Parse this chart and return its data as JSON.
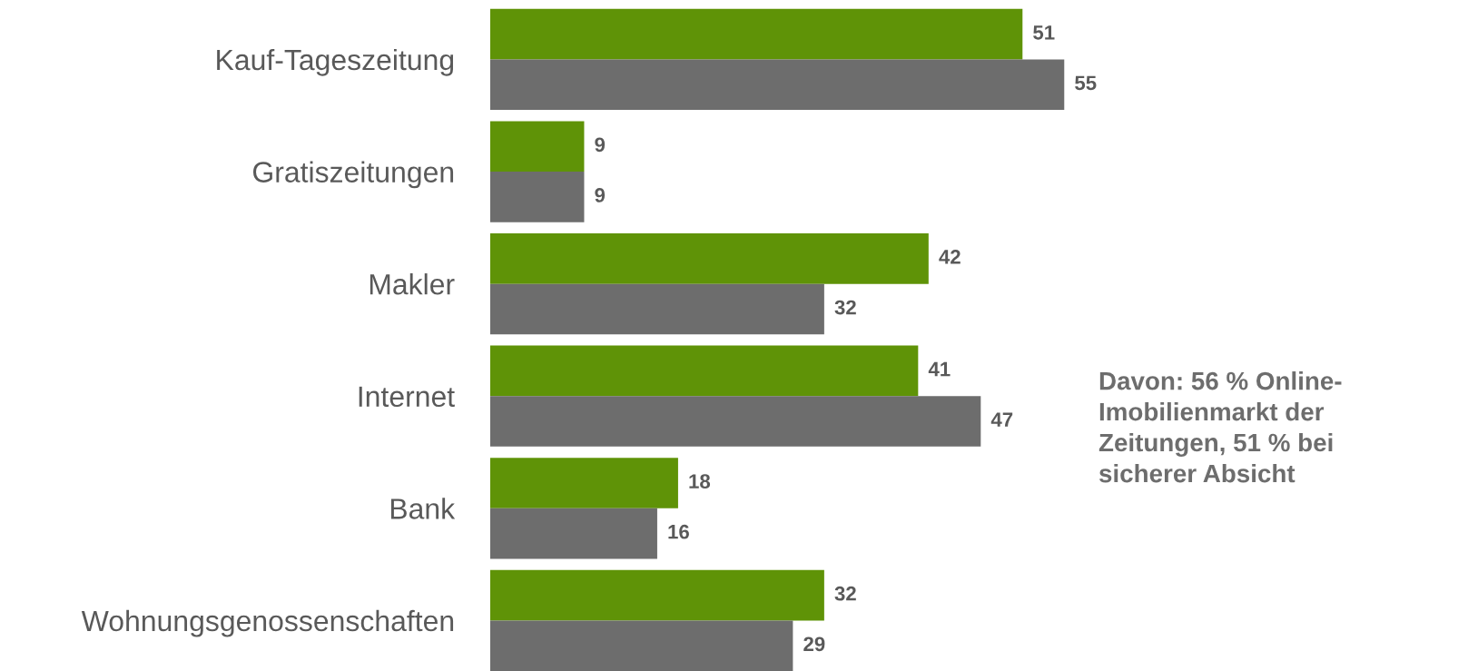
{
  "chart_data": {
    "type": "bar",
    "orientation": "horizontal",
    "categories": [
      "Kauf-Tageszeitung",
      "Gratiszeitungen",
      "Makler",
      "Internet",
      "Bank",
      "Wohnungsgenossenschaften"
    ],
    "series": [
      {
        "color": "#5f9307",
        "values": [
          51,
          9,
          42,
          41,
          18,
          32
        ]
      },
      {
        "color": "#6d6d6d",
        "values": [
          55,
          9,
          32,
          47,
          16,
          29
        ]
      }
    ],
    "data_labels": true,
    "annotations": [
      "Davon: 56 % Online-\nImobilienmarkt der\nZeitungen, 51 % bei\nsicherer Absicht"
    ]
  }
}
